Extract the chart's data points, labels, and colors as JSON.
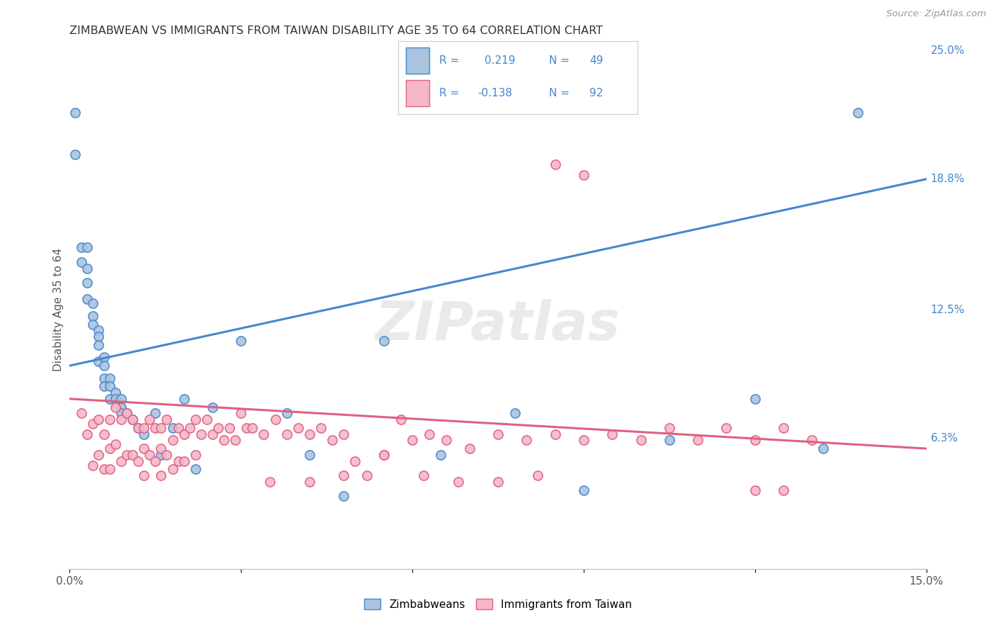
{
  "title": "ZIMBABWEAN VS IMMIGRANTS FROM TAIWAN DISABILITY AGE 35 TO 64 CORRELATION CHART",
  "source": "Source: ZipAtlas.com",
  "ylabel": "Disability Age 35 to 64",
  "xmin": 0.0,
  "xmax": 0.15,
  "ymin": 0.0,
  "ymax": 0.25,
  "legend_label1": "Zimbabweans",
  "legend_label2": "Immigrants from Taiwan",
  "watermark": "ZIPatlas",
  "color_blue": "#aac4e0",
  "color_pink": "#f4b8c8",
  "color_blue_line": "#4488cc",
  "color_pink_line": "#e06080",
  "color_legend_text": "#4488cc",
  "blue_scatter_x": [
    0.001,
    0.001,
    0.002,
    0.002,
    0.003,
    0.003,
    0.003,
    0.003,
    0.004,
    0.004,
    0.004,
    0.005,
    0.005,
    0.005,
    0.005,
    0.006,
    0.006,
    0.006,
    0.006,
    0.007,
    0.007,
    0.007,
    0.008,
    0.008,
    0.009,
    0.009,
    0.009,
    0.01,
    0.011,
    0.012,
    0.013,
    0.015,
    0.016,
    0.018,
    0.02,
    0.022,
    0.025,
    0.03,
    0.038,
    0.042,
    0.048,
    0.055,
    0.065,
    0.078,
    0.09,
    0.105,
    0.12,
    0.132,
    0.138
  ],
  "blue_scatter_y": [
    0.22,
    0.2,
    0.155,
    0.148,
    0.155,
    0.145,
    0.138,
    0.13,
    0.128,
    0.122,
    0.118,
    0.115,
    0.112,
    0.108,
    0.1,
    0.102,
    0.098,
    0.092,
    0.088,
    0.092,
    0.088,
    0.082,
    0.085,
    0.082,
    0.082,
    0.078,
    0.075,
    0.075,
    0.072,
    0.068,
    0.065,
    0.075,
    0.055,
    0.068,
    0.082,
    0.048,
    0.078,
    0.11,
    0.075,
    0.055,
    0.035,
    0.11,
    0.055,
    0.075,
    0.038,
    0.062,
    0.082,
    0.058,
    0.22
  ],
  "pink_scatter_x": [
    0.002,
    0.003,
    0.004,
    0.004,
    0.005,
    0.005,
    0.006,
    0.006,
    0.007,
    0.007,
    0.007,
    0.008,
    0.008,
    0.009,
    0.009,
    0.01,
    0.01,
    0.011,
    0.011,
    0.012,
    0.012,
    0.013,
    0.013,
    0.013,
    0.014,
    0.014,
    0.015,
    0.015,
    0.016,
    0.016,
    0.016,
    0.017,
    0.017,
    0.018,
    0.018,
    0.019,
    0.019,
    0.02,
    0.02,
    0.021,
    0.022,
    0.022,
    0.023,
    0.024,
    0.025,
    0.026,
    0.027,
    0.028,
    0.029,
    0.03,
    0.031,
    0.032,
    0.034,
    0.036,
    0.038,
    0.04,
    0.042,
    0.044,
    0.046,
    0.048,
    0.05,
    0.052,
    0.055,
    0.058,
    0.06,
    0.063,
    0.066,
    0.07,
    0.075,
    0.08,
    0.085,
    0.09,
    0.095,
    0.1,
    0.105,
    0.11,
    0.115,
    0.12,
    0.125,
    0.13,
    0.085,
    0.09,
    0.035,
    0.042,
    0.048,
    0.055,
    0.062,
    0.068,
    0.075,
    0.082,
    0.12,
    0.125
  ],
  "pink_scatter_y": [
    0.075,
    0.065,
    0.07,
    0.05,
    0.072,
    0.055,
    0.065,
    0.048,
    0.072,
    0.058,
    0.048,
    0.078,
    0.06,
    0.072,
    0.052,
    0.075,
    0.055,
    0.072,
    0.055,
    0.068,
    0.052,
    0.068,
    0.058,
    0.045,
    0.072,
    0.055,
    0.068,
    0.052,
    0.068,
    0.058,
    0.045,
    0.072,
    0.055,
    0.062,
    0.048,
    0.068,
    0.052,
    0.065,
    0.052,
    0.068,
    0.072,
    0.055,
    0.065,
    0.072,
    0.065,
    0.068,
    0.062,
    0.068,
    0.062,
    0.075,
    0.068,
    0.068,
    0.065,
    0.072,
    0.065,
    0.068,
    0.065,
    0.068,
    0.062,
    0.065,
    0.052,
    0.045,
    0.055,
    0.072,
    0.062,
    0.065,
    0.062,
    0.058,
    0.065,
    0.062,
    0.065,
    0.062,
    0.065,
    0.062,
    0.068,
    0.062,
    0.068,
    0.062,
    0.068,
    0.062,
    0.195,
    0.19,
    0.042,
    0.042,
    0.045,
    0.055,
    0.045,
    0.042,
    0.042,
    0.045,
    0.038,
    0.038
  ],
  "blue_line_x": [
    0.0,
    0.15
  ],
  "blue_line_y": [
    0.098,
    0.188
  ],
  "pink_line_x": [
    0.0,
    0.15
  ],
  "pink_line_y": [
    0.082,
    0.058
  ],
  "bg_color": "#ffffff",
  "grid_color": "#cccccc",
  "title_color": "#333333",
  "axis_label_color": "#555555",
  "ytick_positions": [
    0.063,
    0.125,
    0.188,
    0.25
  ],
  "ytick_labels": [
    "6.3%",
    "12.5%",
    "18.8%",
    "25.0%"
  ],
  "ytick_colors": [
    "#4488cc",
    "#4488cc",
    "#4488cc",
    "#4488cc"
  ]
}
